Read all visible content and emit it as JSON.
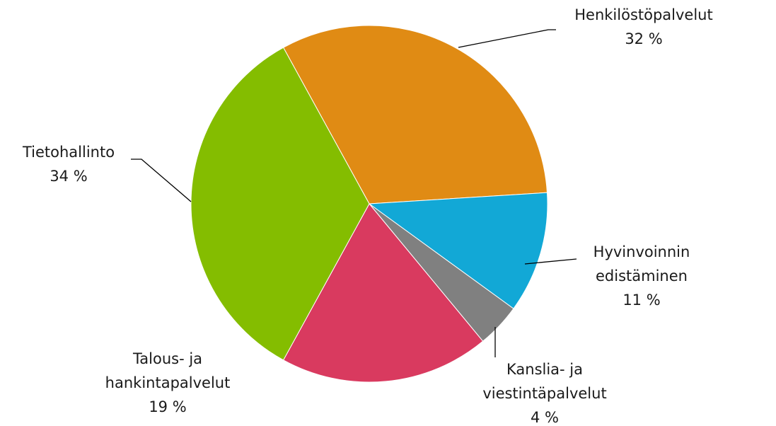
{
  "chart_data": {
    "type": "pie",
    "categories": [
      "Henkilöstöpalvelut",
      "Hyvinvoinnin edistäminen",
      "Kanslia- ja viestintäpalvelut",
      "Talous- ja hankintapalvelut",
      "Tietohallinto"
    ],
    "values": [
      32,
      11,
      4,
      19,
      34
    ],
    "value_labels": [
      "32 %",
      "11 %",
      "4 %",
      "19 %",
      "34 %"
    ],
    "colors": [
      "#e08b14",
      "#12a8d6",
      "#808080",
      "#d93a5f",
      "#84bd00"
    ]
  }
}
